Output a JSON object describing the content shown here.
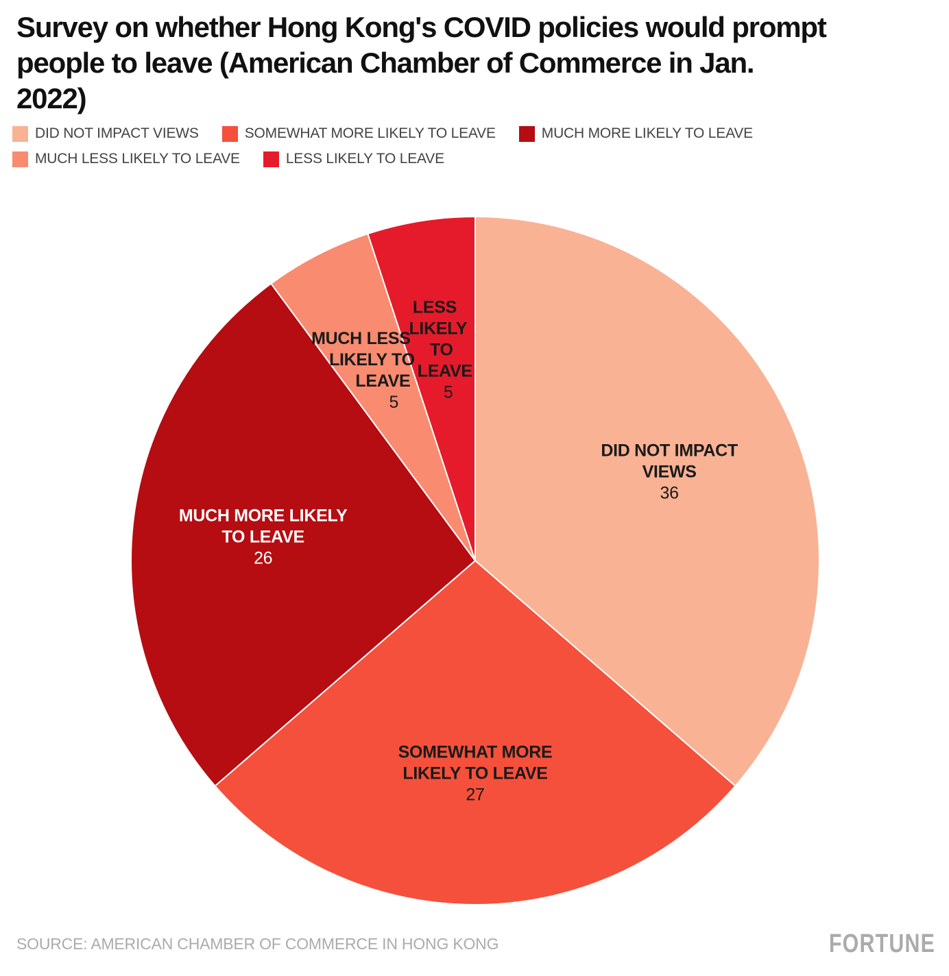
{
  "header": {
    "title_lines": [
      "Survey on whether Hong Kong's COVID policies would prompt",
      "people to leave (American Chamber of Commerce in Jan.",
      "2022)"
    ]
  },
  "legend": {
    "items": [
      {
        "label": "DID NOT IMPACT VIEWS",
        "color": "#F9B294"
      },
      {
        "label": "SOMEWHAT MORE LIKELY TO LEAVE",
        "color": "#F5503B"
      },
      {
        "label": "MUCH MORE LIKELY TO LEAVE",
        "color": "#B50D12"
      },
      {
        "label": "MUCH LESS LIKELY TO LEAVE",
        "color": "#F88B70"
      },
      {
        "label": "LESS LIKELY TO LEAVE",
        "color": "#E51B2B"
      }
    ]
  },
  "chart_data": {
    "type": "pie",
    "title": "Survey on whether Hong Kong's COVID policies would prompt people to leave (American Chamber of Commerce in Jan. 2022)",
    "total": 99,
    "start_angle_deg": 0,
    "direction": "clockwise",
    "legend_position": "top",
    "labels_position": "inside",
    "separator_color": "#FFFFFF",
    "slices": [
      {
        "label": "DID NOT IMPACT VIEWS",
        "label_lines": [
          "DID NOT IMPACT",
          "VIEWS"
        ],
        "value": 36,
        "color": "#F9B294",
        "label_color": "#1A1A1A"
      },
      {
        "label": "SOMEWHAT MORE LIKELY TO LEAVE",
        "label_lines": [
          "SOMEWHAT MORE",
          "LIKELY TO LEAVE"
        ],
        "value": 27,
        "color": "#F5503B",
        "label_color": "#1A1A1A"
      },
      {
        "label": "MUCH MORE LIKELY TO LEAVE",
        "label_lines": [
          "MUCH MORE LIKELY",
          "TO LEAVE"
        ],
        "value": 26,
        "color": "#B50D12",
        "label_color": "#FFFFFF"
      },
      {
        "label": "MUCH LESS LIKELY TO LEAVE",
        "label_lines": [
          "MUCH LESS",
          "LIKELY TO",
          "LEAVE"
        ],
        "value": 5,
        "color": "#F88B70",
        "label_color": "#1A1A1A"
      },
      {
        "label": "LESS LIKELY TO LEAVE",
        "label_lines": [
          "LESS",
          "LIKELY",
          "TO",
          "LEAVE"
        ],
        "value": 5,
        "color": "#E51B2B",
        "label_color": "#1A1A1A"
      }
    ]
  },
  "footer": {
    "source": "SOURCE: AMERICAN CHAMBER OF COMMERCE IN HONG KONG",
    "brand": "FORTUNE"
  }
}
